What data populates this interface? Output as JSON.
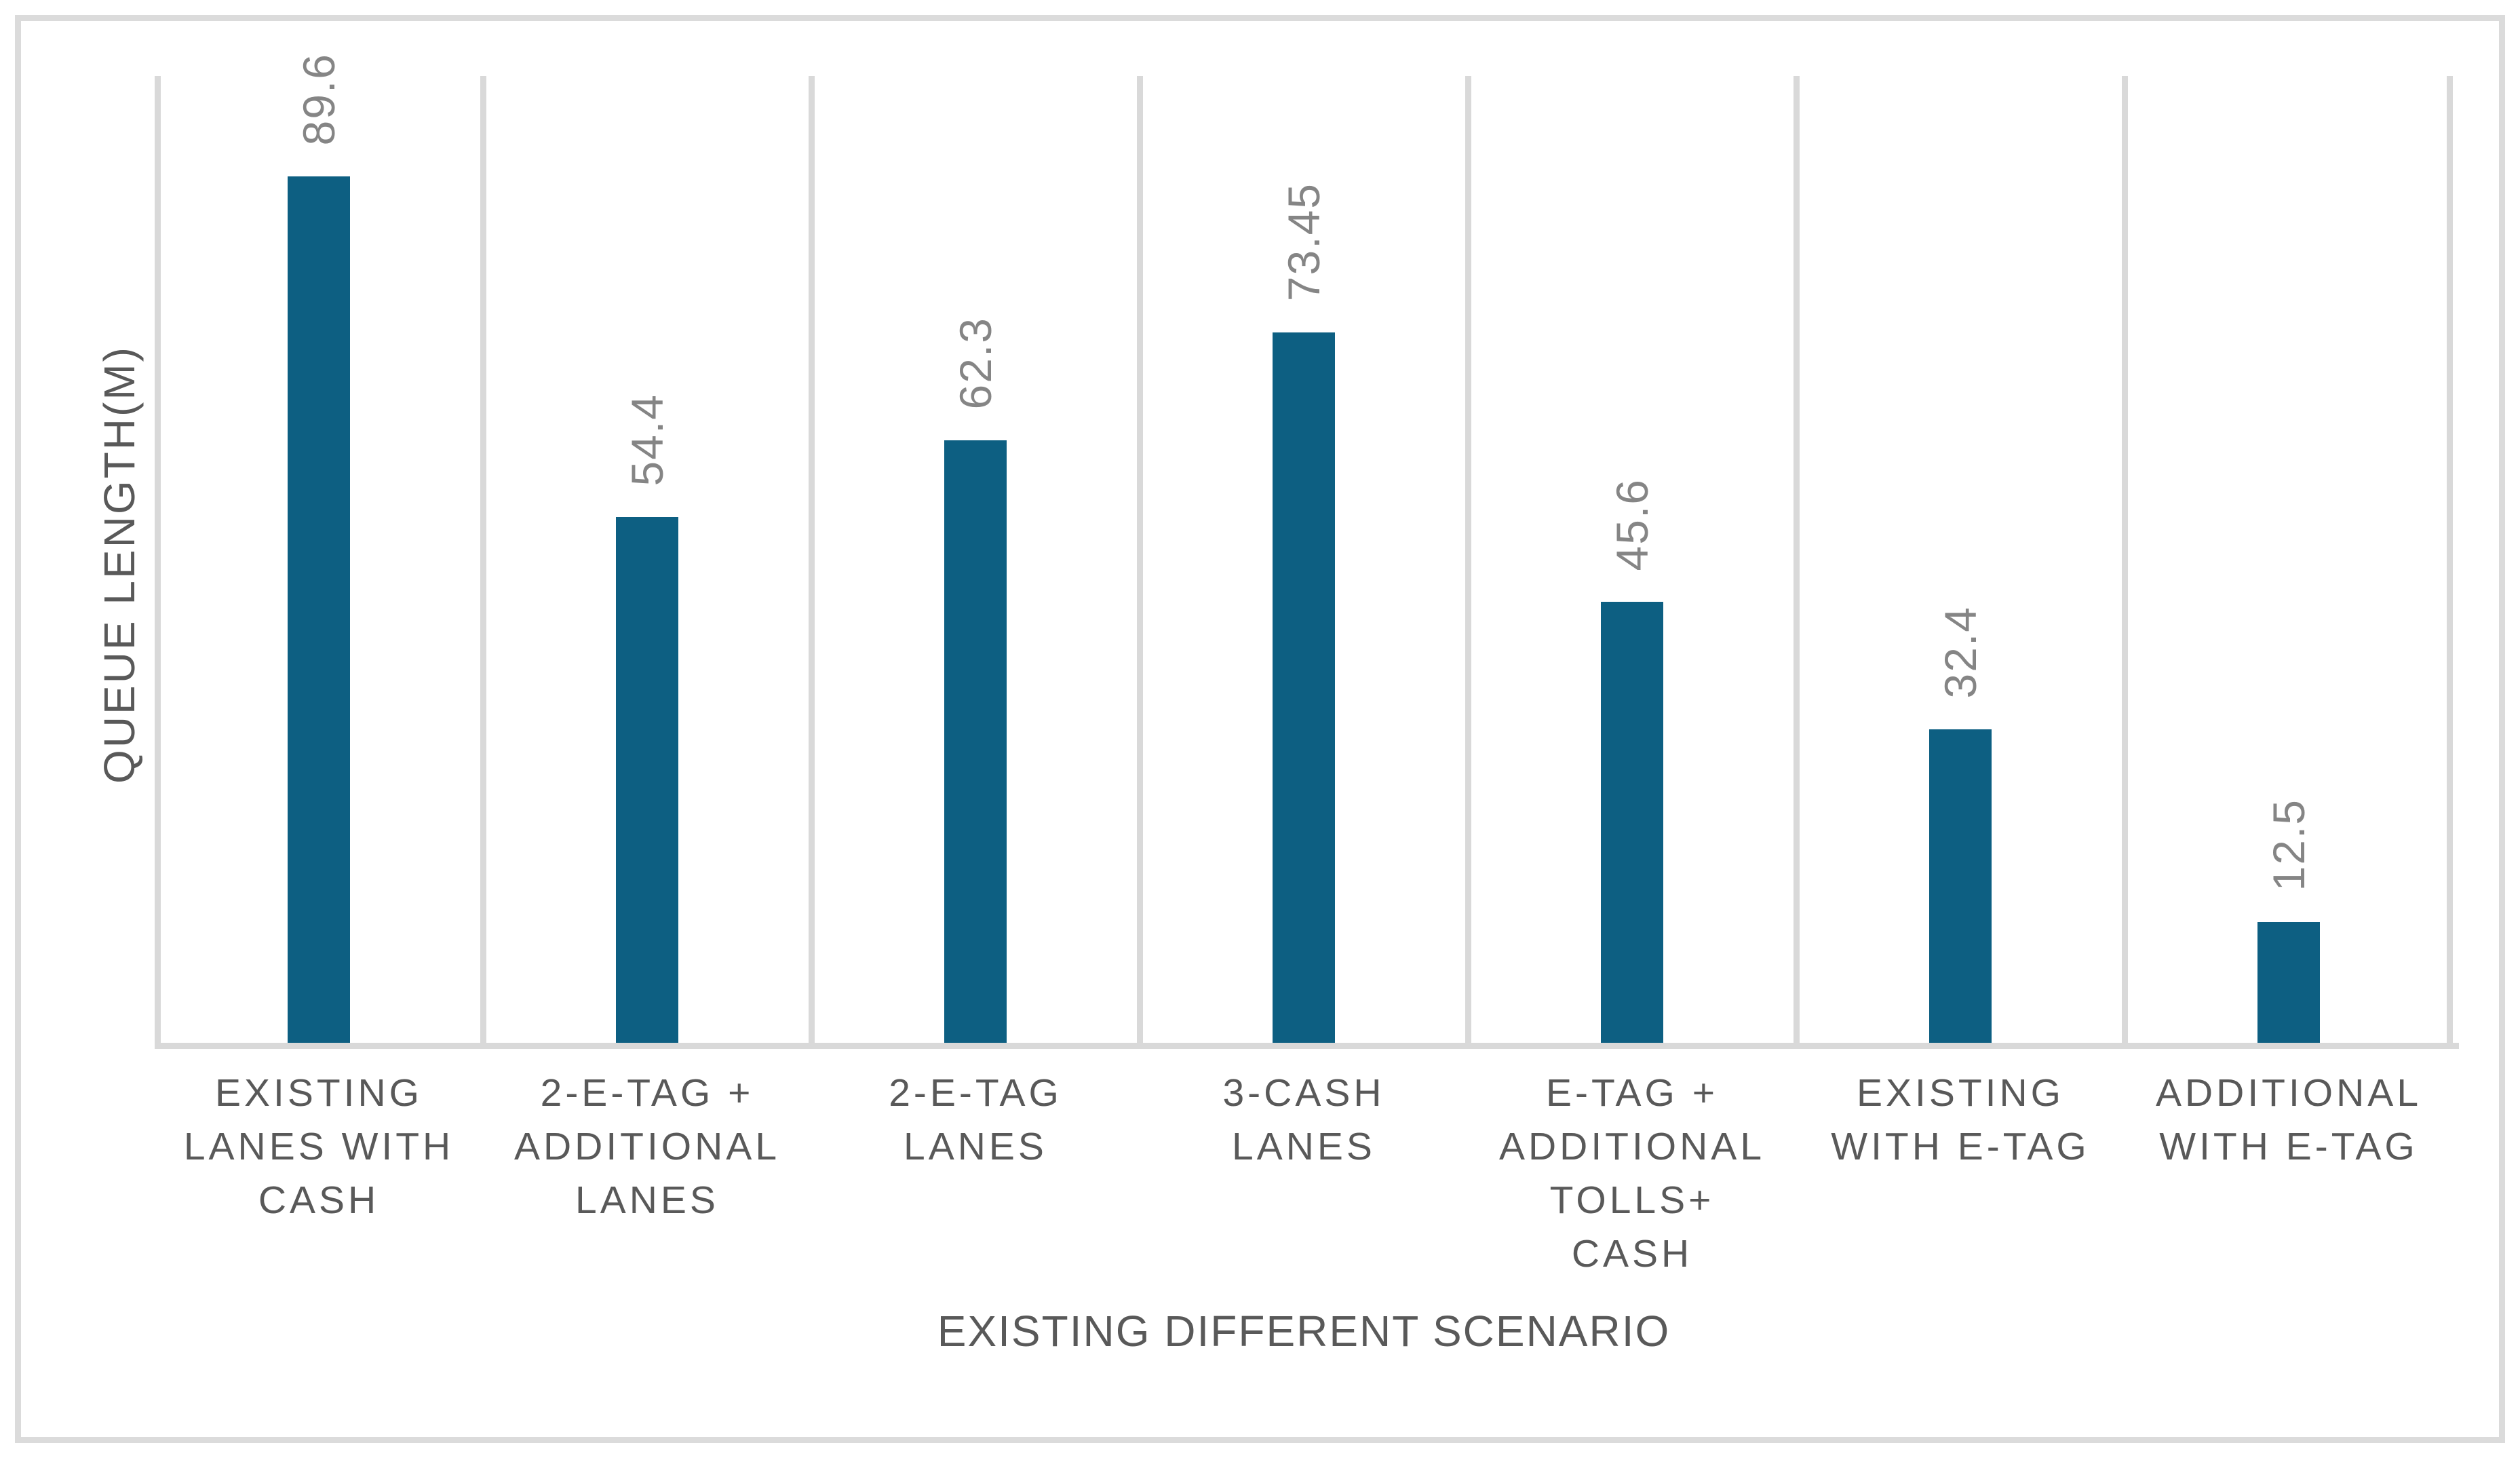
{
  "chart": {
    "y_axis_title": "QUEUE LENGTH(M)",
    "x_axis_title": "EXISTING DIFFERENT SCENARIO"
  },
  "chart_data": {
    "type": "bar",
    "title": "",
    "xlabel": "EXISTING DIFFERENT SCENARIO",
    "ylabel": "QUEUE LENGTH(M)",
    "ylim": [
      0,
      100
    ],
    "y_tick_labels_visible": false,
    "gridlines": "vertical category separators only",
    "legend": false,
    "categories": [
      "EXISTING LANES WITH CASH",
      "2-E-TAG + ADDITIONAL LANES",
      "2-E-TAG LANES",
      "3-CASH LANES",
      "E-TAG + ADDITIONAL TOLLS+ CASH",
      "EXISTING WITH E-TAG",
      "ADDITIONAL WITH E-TAG"
    ],
    "category_label_lines": [
      "EXISTING\nLANES WITH\nCASH",
      "2-E-TAG +\nADDITIONAL\nLANES",
      "2-E-TAG\nLANES",
      "3-CASH\nLANES",
      "E-TAG +\nADDITIONAL\nTOLLS+\nCASH",
      "EXISTING\nWITH E-TAG",
      "ADDITIONAL\nWITH E-TAG"
    ],
    "values": [
      89.6,
      54.4,
      62.3,
      73.45,
      45.6,
      32.4,
      12.5
    ],
    "data_labels": [
      "89.6",
      "54.4",
      "62.3",
      "73.45",
      "45.6",
      "32.4",
      "12.5"
    ],
    "data_label_orientation": "rotated 90deg, reads bottom to top"
  },
  "colors": {
    "bar": "#0d5f82",
    "gridline": "#d9d9d9",
    "outer_border": "#dbdbdb",
    "category_text": "#595959",
    "axis_title_text": "#595959",
    "value_label_text": "#858585",
    "background": "#ffffff"
  }
}
